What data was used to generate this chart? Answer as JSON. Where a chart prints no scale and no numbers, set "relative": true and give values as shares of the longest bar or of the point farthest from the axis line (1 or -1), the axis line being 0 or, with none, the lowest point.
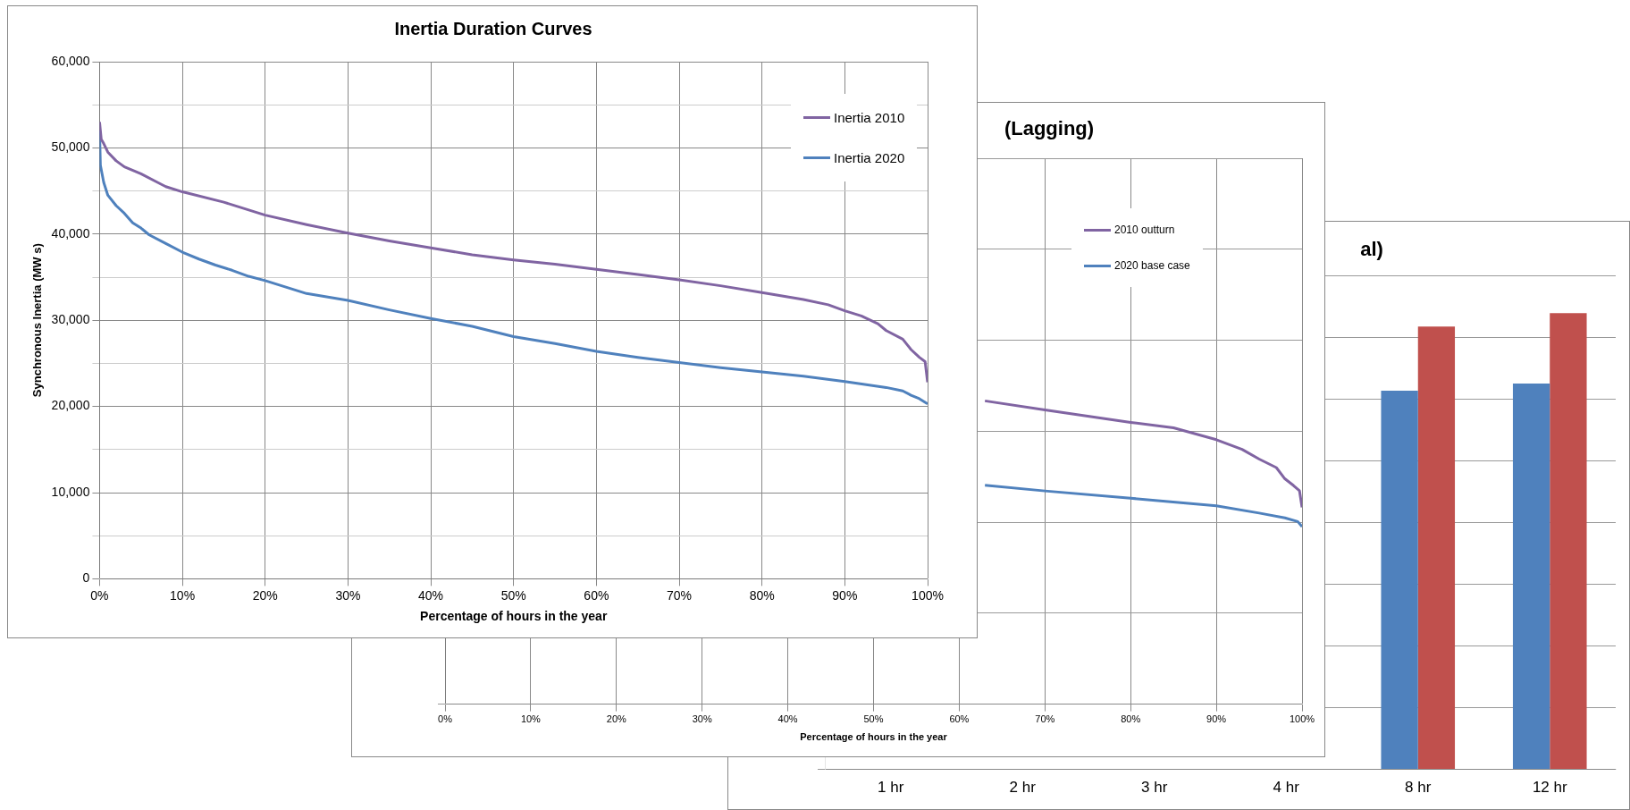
{
  "chart_data": [
    {
      "type": "line",
      "title": "Inertia Duration Curves",
      "xlabel": "Percentage of hours in the year",
      "ylabel": "Synchronous Inertia (MW s)",
      "xlim": [
        0,
        100
      ],
      "xticks": [
        {
          "value": 0,
          "label": "0%"
        },
        {
          "value": 10,
          "label": "10%"
        },
        {
          "value": 20,
          "label": "20%"
        },
        {
          "value": 30,
          "label": "30%"
        },
        {
          "value": 40,
          "label": "40%"
        },
        {
          "value": 50,
          "label": "50%"
        },
        {
          "value": 60,
          "label": "60%"
        },
        {
          "value": 70,
          "label": "70%"
        },
        {
          "value": 80,
          "label": "80%"
        },
        {
          "value": 90,
          "label": "90%"
        },
        {
          "value": 100,
          "label": "100%"
        }
      ],
      "ylim": [
        0,
        60000
      ],
      "yticks": [
        0,
        {
          "value": 5000,
          "label": null
        },
        {
          "value": 10000,
          "label": "10,000"
        },
        {
          "value": 15000,
          "label": null
        },
        {
          "value": 20000,
          "label": "20,000"
        },
        {
          "value": 25000,
          "label": null
        },
        {
          "value": 30000,
          "label": "30,000"
        },
        {
          "value": 35000,
          "label": null
        },
        {
          "value": 40000,
          "label": "40,000"
        },
        {
          "value": 45000,
          "label": null
        },
        {
          "value": 50000,
          "label": "50,000"
        },
        {
          "value": 55000,
          "label": null
        },
        {
          "value": 60000,
          "label": "60,000"
        }
      ],
      "grid": true,
      "legend": "top right",
      "series": [
        {
          "name": "Inertia 2010",
          "color": "#8064a2",
          "x": [
            0,
            0.2,
            0.5,
            1,
            2,
            3,
            5,
            7,
            8,
            10,
            15,
            20,
            25,
            30,
            35,
            40,
            45,
            50,
            55,
            60,
            65,
            70,
            75,
            80,
            85,
            88,
            90,
            92,
            94,
            95,
            97,
            98,
            99,
            99.7,
            100
          ],
          "values": [
            53000,
            51000,
            50500,
            49500,
            48500,
            47800,
            47000,
            46000,
            45500,
            44900,
            43700,
            42200,
            41100,
            40100,
            39200,
            38400,
            37600,
            37000,
            36500,
            35900,
            35300,
            34700,
            34000,
            33200,
            32400,
            31800,
            31100,
            30500,
            29600,
            28800,
            27800,
            26600,
            25700,
            25200,
            22800
          ]
        },
        {
          "name": "Inertia 2020",
          "color": "#4f81bd",
          "x": [
            0,
            0.1,
            0.5,
            1,
            2,
            3,
            4,
            5,
            6,
            8,
            10,
            12,
            14,
            16,
            18,
            20,
            25,
            30,
            35,
            40,
            45,
            50,
            55,
            60,
            65,
            70,
            75,
            80,
            85,
            90,
            95,
            97,
            98,
            99,
            100
          ],
          "values": [
            52000,
            48000,
            46000,
            44500,
            43300,
            42400,
            41300,
            40700,
            39900,
            38900,
            37900,
            37100,
            36400,
            35800,
            35100,
            34600,
            33100,
            32300,
            31200,
            30200,
            29300,
            28100,
            27300,
            26400,
            25700,
            25100,
            24500,
            24000,
            23500,
            22900,
            22200,
            21800,
            21300,
            20900,
            20300
          ]
        }
      ]
    },
    {
      "type": "line",
      "title": "(Lagging)",
      "xlabel": "Percentage of hours in the year",
      "relative": true,
      "xlim": [
        0,
        100
      ],
      "xticks": [
        {
          "value": 0,
          "label": "0%"
        },
        {
          "value": 10,
          "label": "10%"
        },
        {
          "value": 20,
          "label": "20%"
        },
        {
          "value": 30,
          "label": "30%"
        },
        {
          "value": 40,
          "label": "40%"
        },
        {
          "value": 50,
          "label": "50%"
        },
        {
          "value": 60,
          "label": "60%"
        },
        {
          "value": 70,
          "label": "70%"
        },
        {
          "value": 80,
          "label": "80%"
        },
        {
          "value": 90,
          "label": "90%"
        },
        {
          "value": 100,
          "label": "100%"
        }
      ],
      "grid": true,
      "legend": "top right",
      "series": [
        {
          "name": "2010 outturn",
          "color": "#8064a2",
          "x": [
            63,
            70,
            80,
            85,
            90,
            93,
            95,
            97,
            98,
            99,
            99.7,
            100
          ],
          "values": [
            1,
            0.97,
            0.929,
            0.911,
            0.872,
            0.84,
            0.808,
            0.78,
            0.743,
            0.721,
            0.704,
            0.649
          ]
        },
        {
          "name": "2020 base case",
          "color": "#4f81bd",
          "x": [
            63,
            70,
            80,
            90,
            95,
            98,
            99.5,
            100
          ],
          "values": [
            0.722,
            0.703,
            0.679,
            0.654,
            0.63,
            0.614,
            0.602,
            0.585
          ]
        }
      ]
    },
    {
      "type": "bar",
      "title": "al)",
      "relative": true,
      "grid": "y",
      "categories": [
        "1 hr",
        "2 hr",
        "3 hr",
        "4 hr",
        "8 hr",
        "12 hr"
      ],
      "series": [
        {
          "color": "#4f81bd",
          "values": [
            null,
            null,
            null,
            null,
            0.83,
            0.846
          ]
        },
        {
          "color": "#c0504d",
          "values": [
            null,
            null,
            null,
            null,
            0.971,
            1
          ]
        }
      ]
    }
  ]
}
